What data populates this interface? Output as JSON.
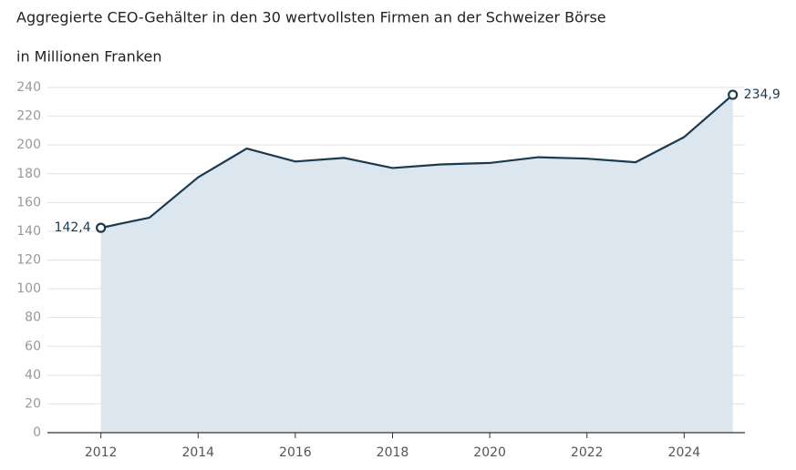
{
  "chart_data": {
    "type": "line",
    "title": "Aggregierte CEO-Gehälter in den 30 wertvollsten Firmen an der Schweizer Börse",
    "subtitle": "in Millionen Franken",
    "x": [
      2012,
      2013,
      2014,
      2015,
      2016,
      2017,
      2018,
      2019,
      2020,
      2021,
      2022,
      2023,
      2024,
      2025
    ],
    "values": [
      142.4,
      149.5,
      177.5,
      197.5,
      188.5,
      191,
      184,
      186.5,
      187.5,
      191.5,
      190.5,
      188,
      205.5,
      234.9
    ],
    "value_labels": [
      "142,4",
      null,
      null,
      null,
      null,
      null,
      null,
      null,
      null,
      null,
      null,
      null,
      null,
      "234,9"
    ],
    "color": "#1a3a4f",
    "area_color": "#dbe6ef",
    "xlim": [
      2010.9,
      2025.25
    ],
    "xticks": [
      2012,
      2014,
      2016,
      2018,
      2020,
      2022,
      2024
    ],
    "ylim": [
      0,
      240
    ],
    "yticks": [
      0,
      20,
      40,
      60,
      80,
      100,
      120,
      140,
      160,
      180,
      200,
      220,
      240
    ],
    "grid": true
  }
}
